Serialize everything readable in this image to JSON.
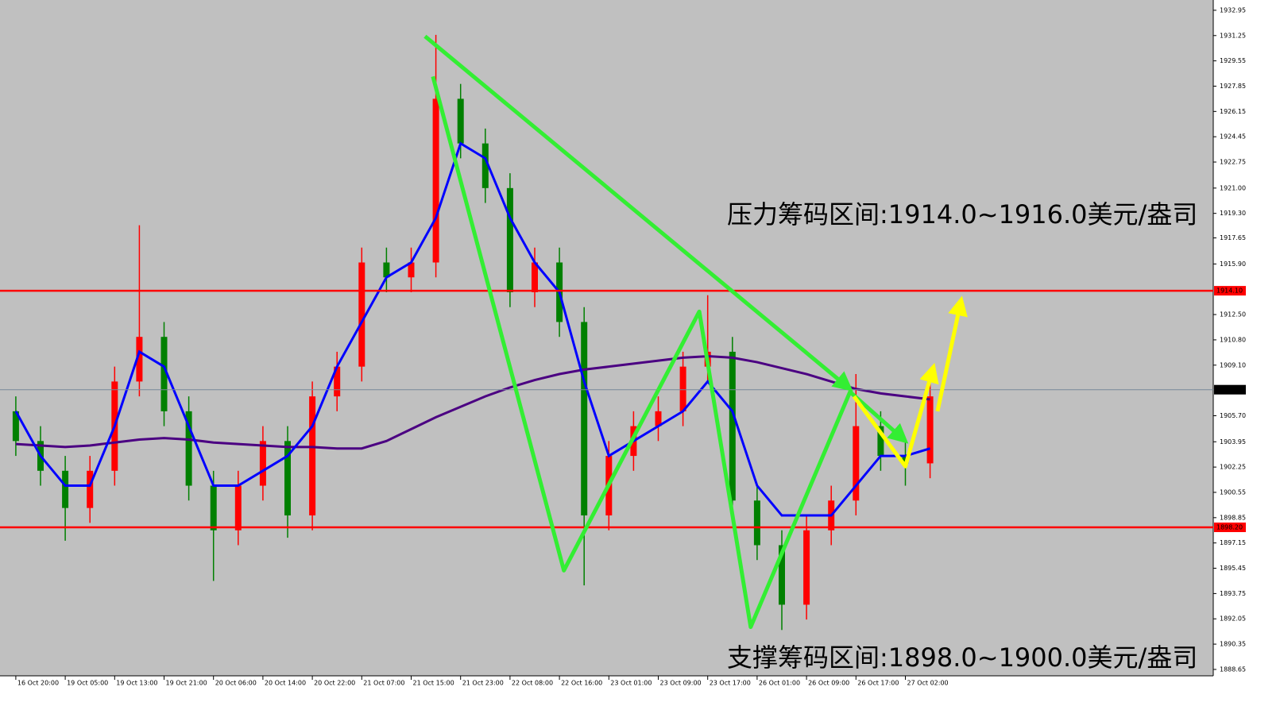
{
  "chart_data": {
    "type": "candlestick",
    "xlim": [
      -0.32,
      24.23
    ],
    "ylim": [
      1888.22,
      1933.64
    ],
    "up_color": "#ff0000",
    "down_color": "#008000",
    "x": [
      0,
      0.5,
      1,
      1.5,
      2,
      2.5,
      3,
      3.5,
      4,
      4.5,
      5,
      5.5,
      6,
      6.5,
      7,
      7.5,
      8,
      8.5,
      9,
      9.5,
      10,
      10.5,
      11,
      11.5,
      12,
      12.5,
      13,
      13.5,
      14,
      14.5,
      15,
      15.5,
      16,
      16.5,
      17,
      17.5,
      18,
      18.5
    ],
    "open": [
      1906,
      1904,
      1902,
      1899.5,
      1902,
      1908,
      1911,
      1906,
      1901,
      1898,
      1901,
      1904,
      1899,
      1907,
      1909,
      1916,
      1915,
      1916,
      1927,
      1924,
      1921,
      1914,
      1916,
      1912,
      1899,
      1903,
      1905,
      1906,
      1909,
      1910,
      1900,
      1897,
      1893,
      1898,
      1900,
      1905,
      1903,
      1902.5
    ],
    "high": [
      1907,
      1905,
      1903,
      1903,
      1909,
      1918.5,
      1912,
      1907,
      1902,
      1902,
      1905,
      1905,
      1908,
      1910,
      1917,
      1917,
      1917,
      1931.3,
      1928,
      1925,
      1922,
      1917,
      1917,
      1913,
      1904,
      1906,
      1907,
      1910,
      1913.8,
      1911,
      1901,
      1898,
      1899,
      1901,
      1908.5,
      1906,
      1904,
      1908
    ],
    "low": [
      1903,
      1901,
      1897.3,
      1898.5,
      1901,
      1907,
      1905,
      1900,
      1894.6,
      1897,
      1900,
      1897.5,
      1898,
      1906,
      1908,
      1914,
      1914,
      1915,
      1923,
      1920,
      1913,
      1913,
      1911,
      1894.3,
      1898,
      1902,
      1904,
      1905,
      1908,
      1899,
      1896,
      1891.3,
      1892,
      1897,
      1899,
      1902,
      1901,
      1901.5
    ],
    "close": [
      1904,
      1902,
      1899.5,
      1902,
      1908,
      1911,
      1906,
      1901,
      1898,
      1901,
      1904,
      1899,
      1907,
      1909,
      1916,
      1915,
      1916,
      1927,
      1924,
      1921,
      1914,
      1916,
      1912,
      1899,
      1903,
      1905,
      1906,
      1909,
      1910,
      1900,
      1897,
      1893,
      1898,
      1900,
      1905,
      1903,
      1902.5,
      1907
    ],
    "series": [
      {
        "color": "#4b0082",
        "values": [
          1903.8,
          1903.7,
          1903.6,
          1903.7,
          1903.9,
          1904.1,
          1904.2,
          1904.1,
          1903.9,
          1903.8,
          1903.7,
          1903.6,
          1903.6,
          1903.5,
          1903.5,
          1904.0,
          1904.8,
          1905.6,
          1906.3,
          1907.0,
          1907.6,
          1908.1,
          1908.5,
          1908.8,
          1909.0,
          1909.2,
          1909.4,
          1909.6,
          1909.7,
          1909.6,
          1909.3,
          1908.9,
          1908.5,
          1908.0,
          1907.5,
          1907.2,
          1907.0,
          1906.8
        ]
      },
      {
        "color": "#0000ff",
        "values": [
          1906,
          1903,
          1901,
          1901,
          1905,
          1910,
          1909,
          1905,
          1901,
          1901,
          1902,
          1903,
          1905,
          1909,
          1912,
          1915,
          1916,
          1919,
          1924,
          1923,
          1919,
          1916,
          1914,
          1908,
          1903,
          1904,
          1905,
          1906,
          1908,
          1906,
          1901,
          1899,
          1899,
          1899,
          1901,
          1903,
          1903,
          1903.5
        ]
      }
    ],
    "hlines": [
      {
        "value": 1914.1,
        "label": "1914.10",
        "color": "#ff0000"
      },
      {
        "value": 1898.2,
        "label": "1898.20",
        "color": "#ff0000"
      },
      {
        "value": 1907.45,
        "label": "1907.45",
        "color": "#000000"
      }
    ],
    "arrows": [
      {
        "color": "#33ee33",
        "x": [
          8.28,
          16.88
        ],
        "y": [
          1931.2,
          1907.5
        ]
      },
      {
        "color": "#33ee33",
        "x": [
          8.44,
          11.09,
          13.83,
          14.87,
          16.88,
          18.0
        ],
        "y": [
          1928.5,
          1895.3,
          1912.7,
          1891.5,
          1907.3,
          1904.0
        ]
      },
      {
        "color": "#ffff00",
        "x": [
          16.96,
          18.0,
          18.57
        ],
        "y": [
          1907.0,
          1902.3,
          1909.0
        ]
      },
      {
        "color": "#ffff00",
        "x": [
          18.65,
          19.13
        ],
        "y": [
          1906.0,
          1913.5
        ]
      }
    ],
    "annotations": [
      "压力筹码区间:1914.0~1916.0美元/盎司",
      "支撑筹码区间:1898.0~1900.0美元/盎司"
    ],
    "yticks": [
      {
        "value": 1932.95,
        "label": "1932.95"
      },
      {
        "value": 1931.25,
        "label": "1931.25"
      },
      {
        "value": 1929.55,
        "label": "1929.55"
      },
      {
        "value": 1927.85,
        "label": "1927.85"
      },
      {
        "value": 1926.15,
        "label": "1926.15"
      },
      {
        "value": 1924.45,
        "label": "1924.45"
      },
      {
        "value": 1922.75,
        "label": "1922.75"
      },
      {
        "value": 1921.0,
        "label": "1921.00"
      },
      {
        "value": 1919.3,
        "label": "1919.30"
      },
      {
        "value": 1917.65,
        "label": "1917.65"
      },
      {
        "value": 1915.9,
        "label": "1915.90"
      },
      {
        "value": 1912.5,
        "label": "1912.50"
      },
      {
        "value": 1910.8,
        "label": "1910.80"
      },
      {
        "value": 1909.1,
        "label": "1909.10"
      },
      {
        "value": 1905.7,
        "label": "1905.70"
      },
      {
        "value": 1903.95,
        "label": "1903.95"
      },
      {
        "value": 1902.25,
        "label": "1902.25"
      },
      {
        "value": 1900.55,
        "label": "1900.55"
      },
      {
        "value": 1898.85,
        "label": "1898.85"
      },
      {
        "value": 1897.15,
        "label": "1897.15"
      },
      {
        "value": 1895.45,
        "label": "1895.45"
      },
      {
        "value": 1893.75,
        "label": "1893.75"
      },
      {
        "value": 1892.05,
        "label": "1892.05"
      },
      {
        "value": 1890.35,
        "label": "1890.35"
      },
      {
        "value": 1888.65,
        "label": "1888.65"
      }
    ],
    "xticks": [
      {
        "value": 0,
        "label": "16 Oct 20:00"
      },
      {
        "value": 1,
        "label": "19 Oct 05:00"
      },
      {
        "value": 2,
        "label": "19 Oct 13:00"
      },
      {
        "value": 3,
        "label": "19 Oct 21:00"
      },
      {
        "value": 4,
        "label": "20 Oct 06:00"
      },
      {
        "value": 5,
        "label": "20 Oct 14:00"
      },
      {
        "value": 6,
        "label": "20 Oct 22:00"
      },
      {
        "value": 7,
        "label": "21 Oct 07:00"
      },
      {
        "value": 8,
        "label": "21 Oct 15:00"
      },
      {
        "value": 9,
        "label": "21 Oct 23:00"
      },
      {
        "value": 10,
        "label": "22 Oct 08:00"
      },
      {
        "value": 11,
        "label": "22 Oct 16:00"
      },
      {
        "value": 12,
        "label": "23 Oct 01:00"
      },
      {
        "value": 13,
        "label": "23 Oct 09:00"
      },
      {
        "value": 14,
        "label": "23 Oct 17:00"
      },
      {
        "value": 15,
        "label": "26 Oct 01:00"
      },
      {
        "value": 16,
        "label": "26 Oct 09:00"
      },
      {
        "value": 17,
        "label": "26 Oct 17:00"
      },
      {
        "value": 18,
        "label": "27 Oct 02:00"
      }
    ]
  }
}
